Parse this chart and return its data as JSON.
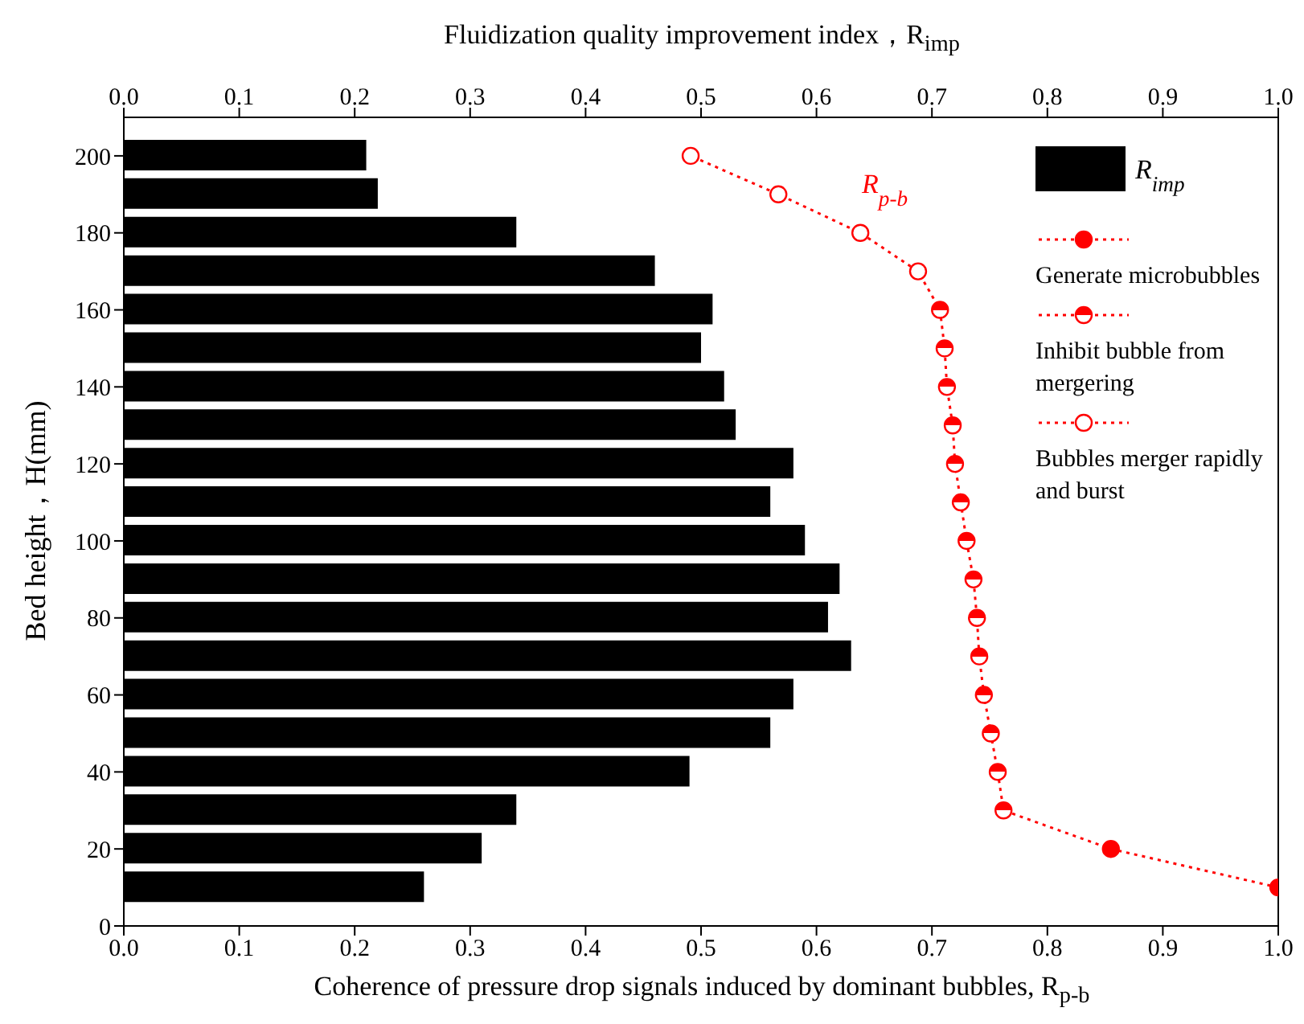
{
  "chart_data": {
    "type": "bar",
    "orientation": "horizontal",
    "x2label": "Fluidization quality improvement index，R$_{imp}$",
    "xlabel": "Coherence of pressure drop signals induced by dominant bubbles, R$_{p-b}$",
    "ylabel": "Bed height，H(mm)",
    "x": [
      10,
      20,
      30,
      40,
      50,
      60,
      70,
      80,
      90,
      100,
      110,
      120,
      130,
      140,
      150,
      160,
      170,
      180,
      190,
      200
    ],
    "series": [
      {
        "axis": "x2",
        "name": "R$_{imp}$",
        "color": "#000000",
        "values": [
          0.26,
          0.31,
          0.34,
          0.49,
          0.56,
          0.58,
          0.63,
          0.61,
          0.62,
          0.59,
          0.56,
          0.58,
          0.53,
          0.52,
          0.5,
          0.51,
          0.46,
          0.34,
          0.22,
          0.21
        ]
      },
      {
        "type": "line",
        "name": "R$_{p-b}$",
        "color": "#ff0000",
        "marker": "none",
        "values": [
          1.0,
          0.855,
          0.762,
          0.757,
          0.751,
          0.745,
          0.741,
          0.739,
          0.736,
          0.73,
          0.725,
          0.72,
          0.718,
          0.713,
          0.711,
          0.707,
          0.688,
          0.638,
          0.567,
          0.491
        ]
      },
      {
        "type": "scatter",
        "name": "Generate microbubbles",
        "color": "#ff0000",
        "values": [
          1.0,
          0.855,
          null,
          null,
          null,
          null,
          null,
          null,
          null,
          null,
          null,
          null,
          null,
          null,
          null,
          null,
          null,
          null,
          null,
          null
        ]
      },
      {
        "type": "scatter",
        "name": "Inhibit bubble from mergering",
        "color": "#ff0000",
        "values": [
          null,
          null,
          0.762,
          0.757,
          0.751,
          0.745,
          0.741,
          0.739,
          0.736,
          0.73,
          0.725,
          0.72,
          0.718,
          0.713,
          0.711,
          0.707,
          null,
          null,
          null,
          null
        ]
      },
      {
        "type": "scatter",
        "name": "Bubbles merger rapidly and burst",
        "color": "#ff0000",
        "values": [
          null,
          null,
          null,
          null,
          null,
          null,
          null,
          null,
          null,
          null,
          null,
          null,
          null,
          null,
          null,
          null,
          0.688,
          0.638,
          0.567,
          0.491
        ]
      }
    ],
    "xlim": [
      0,
      1
    ],
    "xticks": [
      {
        "value": 0,
        "label": "0.0"
      },
      0.1,
      0.2,
      0.3,
      0.4,
      0.5,
      0.6,
      0.7,
      0.8,
      0.9,
      {
        "value": 1,
        "label": "1.0"
      }
    ],
    "x2lim": [
      0,
      1
    ],
    "x2ticks": [
      {
        "value": 0,
        "label": "0.0"
      },
      0.1,
      0.2,
      0.3,
      0.4,
      0.5,
      0.6,
      0.7,
      0.8,
      0.9,
      {
        "value": 1,
        "label": "1.0"
      }
    ],
    "ylim": [
      0,
      210
    ],
    "yticks": [
      0,
      20,
      40,
      60,
      80,
      100,
      120,
      140,
      160,
      180,
      200
    ],
    "marker": "circle",
    "line_style": "dotted",
    "legend": "top right",
    "grid": false
  }
}
